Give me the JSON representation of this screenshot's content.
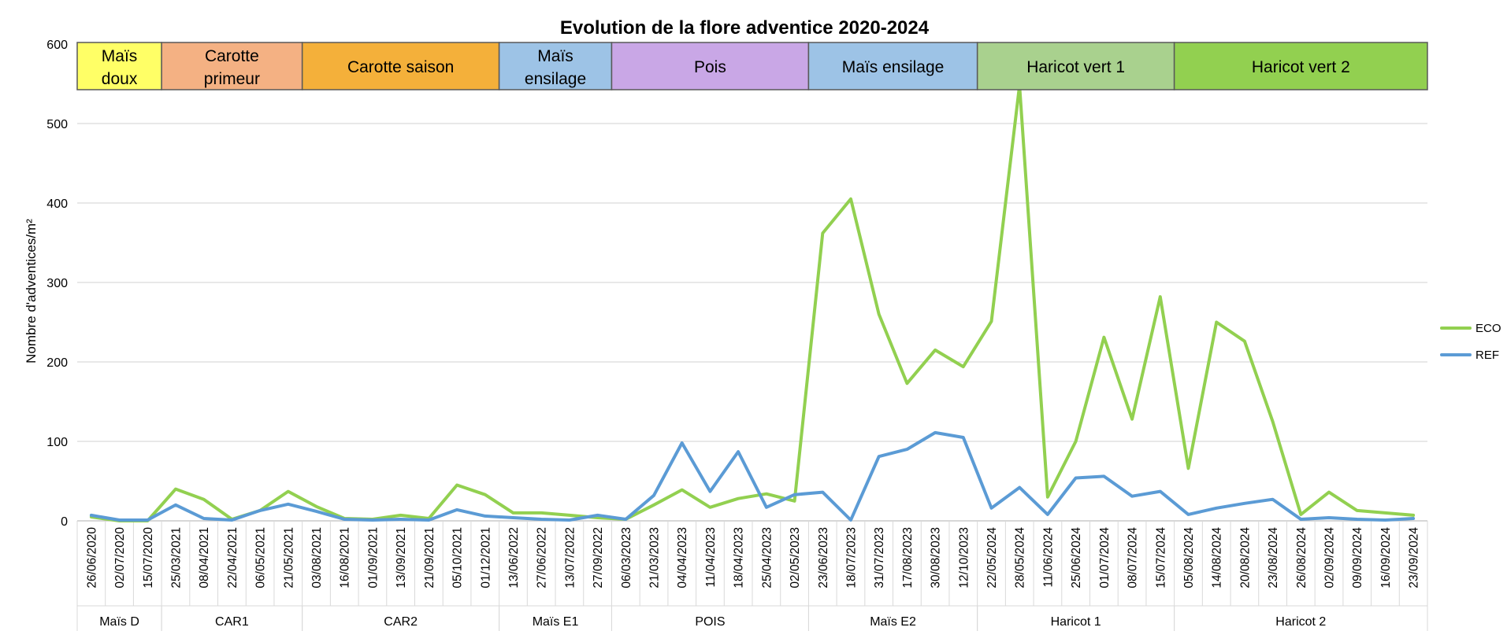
{
  "chart_data": {
    "type": "line",
    "title": "Evolution de la flore adventice 2020-2024",
    "ylabel": "Nombre d'adventices/m²",
    "xlabel": "",
    "ylim": [
      0,
      600
    ],
    "yticks": [
      0,
      100,
      200,
      300,
      400,
      500,
      600
    ],
    "grid": true,
    "legend_position": "right",
    "x": [
      "26/06/2020",
      "02/07/2020",
      "15/07/2020",
      "25/03/2021",
      "08/04/2021",
      "22/04/2021",
      "06/05/2021",
      "21/05/2021",
      "03/08/2021",
      "16/08/2021",
      "01/09/2021",
      "13/09/2021",
      "21/09/2021",
      "05/10/2021",
      "01/12/2021",
      "13/06/2022",
      "27/06/2022",
      "13/07/2022",
      "27/09/2022",
      "06/03/2023",
      "21/03/2023",
      "04/04/2023",
      "11/04/2023",
      "18/04/2023",
      "25/04/2023",
      "02/05/2023",
      "23/06/2023",
      "18/07/2023",
      "31/07/2023",
      "17/08/2023",
      "30/08/2023",
      "12/10/2023",
      "22/05/2024",
      "28/05/2024",
      "11/06/2024",
      "25/06/2024",
      "01/07/2024",
      "08/07/2024",
      "15/07/2024",
      "05/08/2024",
      "14/08/2024",
      "20/08/2024",
      "23/08/2024",
      "26/08/2024",
      "02/09/2024",
      "09/09/2024",
      "16/09/2024",
      "23/09/2024"
    ],
    "series": [
      {
        "name": "ECO",
        "color": "#92d050",
        "values": [
          5,
          0,
          0,
          40,
          27,
          2,
          13,
          37,
          18,
          3,
          2,
          7,
          3,
          45,
          33,
          10,
          10,
          7,
          4,
          2,
          20,
          39,
          17,
          28,
          34,
          25,
          362,
          405,
          260,
          173,
          215,
          194,
          251,
          548,
          30,
          100,
          231,
          128,
          282,
          66,
          250,
          226,
          125,
          8,
          36,
          13,
          10,
          7
        ]
      },
      {
        "name": "REF",
        "color": "#5b9bd5",
        "values": [
          7,
          1,
          1,
          20,
          3,
          1,
          13,
          21,
          12,
          2,
          1,
          2,
          1,
          14,
          6,
          4,
          2,
          1,
          7,
          2,
          32,
          98,
          37,
          87,
          17,
          33,
          36,
          1,
          81,
          90,
          111,
          105,
          16,
          42,
          8,
          54,
          56,
          31,
          37,
          8,
          16,
          22,
          27,
          2,
          4,
          2,
          1,
          3
        ]
      }
    ],
    "group_labels": [
      {
        "label": "Maïs D",
        "start": 0,
        "end": 2
      },
      {
        "label": "CAR1",
        "start": 3,
        "end": 7
      },
      {
        "label": "CAR2",
        "start": 8,
        "end": 14
      },
      {
        "label": "Maïs E1",
        "start": 15,
        "end": 18
      },
      {
        "label": "POIS",
        "start": 19,
        "end": 25
      },
      {
        "label": "Maïs E2",
        "start": 26,
        "end": 31
      },
      {
        "label": "Haricot 1",
        "start": 32,
        "end": 38
      },
      {
        "label": "Haricot 2",
        "start": 39,
        "end": 47
      }
    ],
    "crop_bands": [
      {
        "lines": [
          "Maïs",
          "doux"
        ],
        "color": "#ffff66",
        "start": 0,
        "end": 2
      },
      {
        "lines": [
          "Carotte",
          "primeur"
        ],
        "color": "#f4b183",
        "start": 3,
        "end": 7
      },
      {
        "lines": [
          "Carotte saison"
        ],
        "color": "#f4b03a",
        "start": 8,
        "end": 14
      },
      {
        "lines": [
          "Maïs",
          "ensilage"
        ],
        "color": "#9dc3e6",
        "start": 15,
        "end": 18
      },
      {
        "lines": [
          "Pois"
        ],
        "color": "#c9a7e6",
        "start": 19,
        "end": 25
      },
      {
        "lines": [
          "Maïs ensilage"
        ],
        "color": "#9dc3e6",
        "start": 26,
        "end": 31
      },
      {
        "lines": [
          "Haricot vert 1"
        ],
        "color": "#a9d18e",
        "start": 32,
        "end": 38
      },
      {
        "lines": [
          "Haricot vert 2"
        ],
        "color": "#92d050",
        "start": 39,
        "end": 47
      }
    ]
  }
}
